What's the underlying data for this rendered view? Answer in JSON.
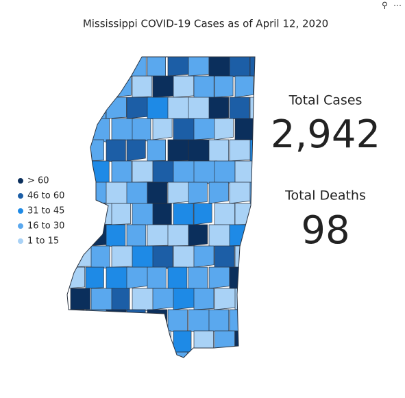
{
  "title": "Mississippi COVID-19 Cases as of April 12, 2020",
  "legend": [
    {
      "label": "> 60",
      "color": "#0b2f5c"
    },
    {
      "label": "46 to 60",
      "color": "#1c5ea6"
    },
    {
      "label": "31 to 45",
      "color": "#1e8ae6"
    },
    {
      "label": "16 to 30",
      "color": "#5aa8ee"
    },
    {
      "label": "1 to 15",
      "color": "#a9d2f6"
    }
  ],
  "total_cases": {
    "label": "Total Cases",
    "value": {
      "value": 2942,
      "label": "2,942"
    },
    "color": "#1a4a85"
  },
  "total_deaths": {
    "label": "Total Deaths",
    "value": 98,
    "color": "#ff0000"
  }
}
